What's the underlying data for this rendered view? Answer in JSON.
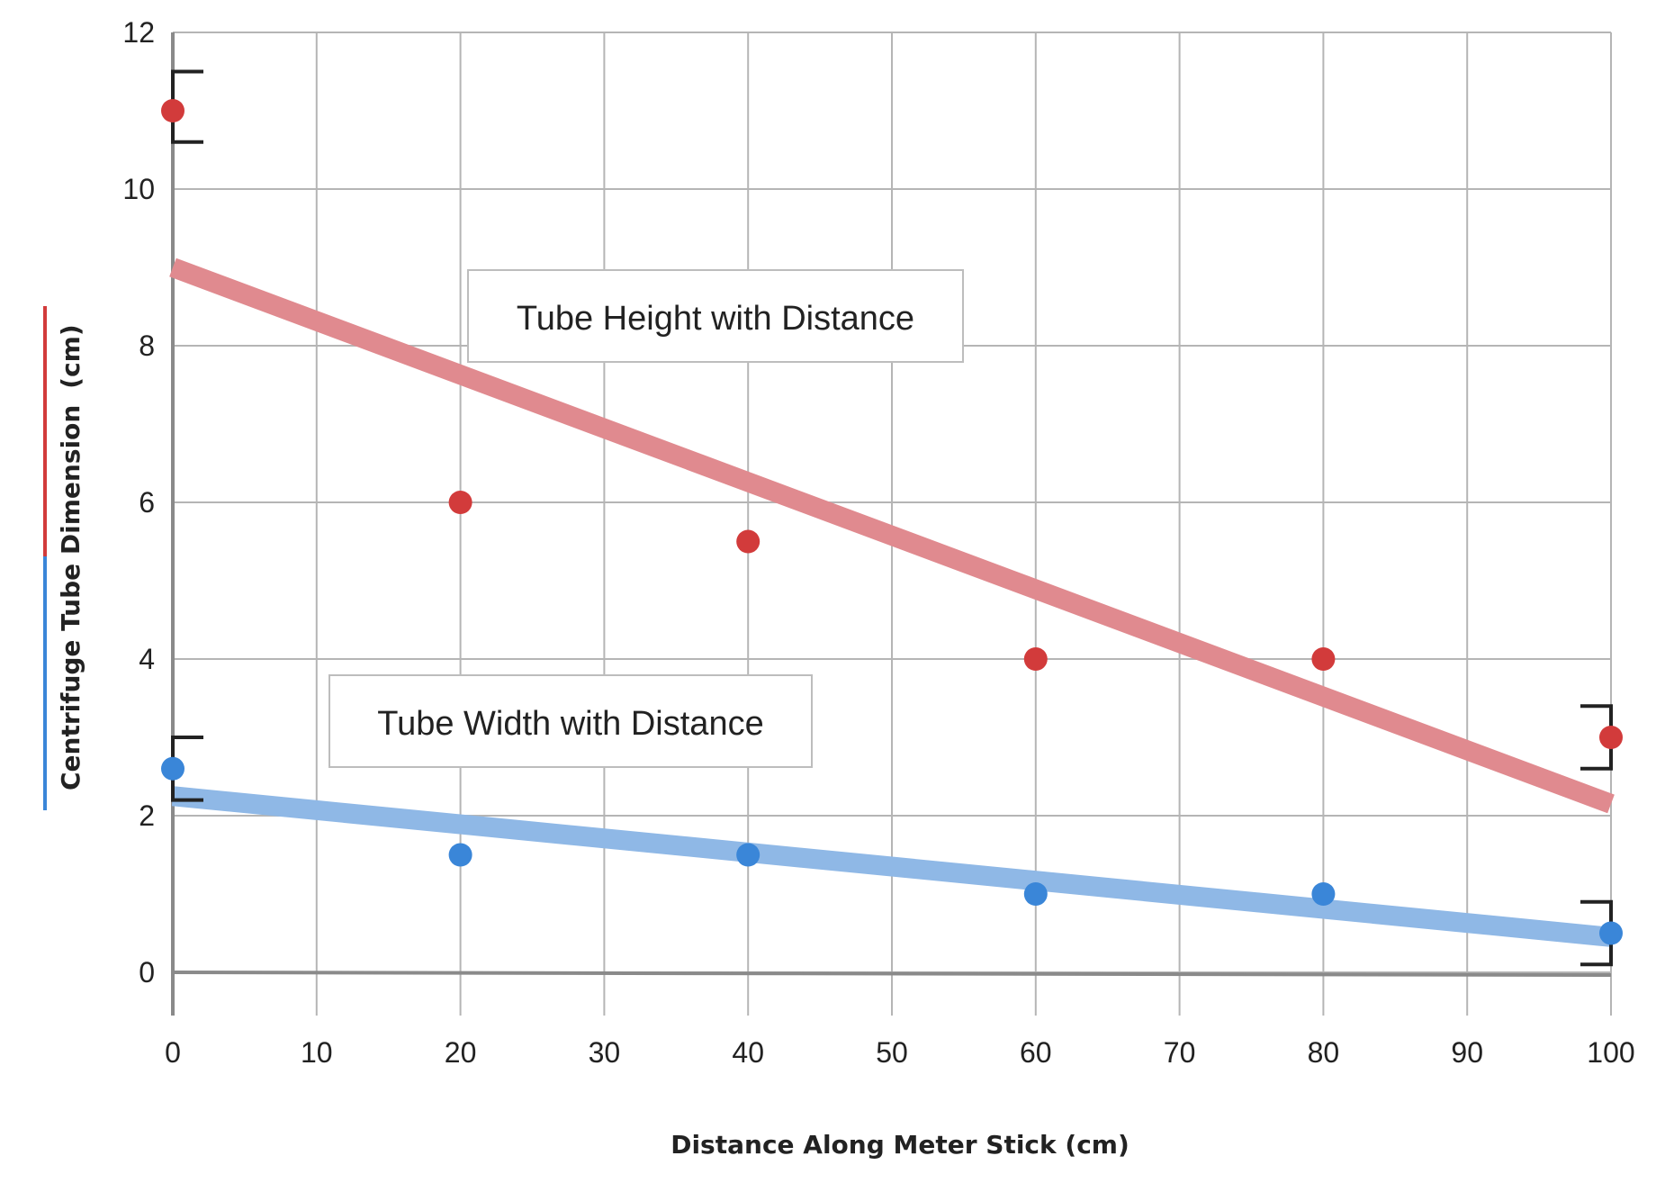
{
  "chart_data": {
    "type": "scatter",
    "xlabel": "Distance Along Meter Stick (cm)",
    "ylabel": "Centrifuge Tube Dimension",
    "ylabel_unit": "(cm)",
    "xlim": [
      0,
      100
    ],
    "ylim": [
      0,
      12
    ],
    "x_ticks": [
      0,
      10,
      20,
      30,
      40,
      50,
      60,
      70,
      80,
      90,
      100
    ],
    "y_ticks": [
      0,
      2,
      4,
      6,
      8,
      10,
      12
    ],
    "grid": true,
    "series": [
      {
        "name": "Tube Height with Distance",
        "color": "#d23b3b",
        "trend_color": "#e08a8f",
        "points": [
          [
            0,
            11
          ],
          [
            20,
            6
          ],
          [
            40,
            5.5
          ],
          [
            60,
            4
          ],
          [
            80,
            4
          ],
          [
            100,
            3
          ]
        ],
        "trend": [
          [
            0,
            9
          ],
          [
            100,
            2.15
          ]
        ],
        "error_bars": [
          {
            "x": 0,
            "low": 10.6,
            "high": 11.5
          },
          {
            "x": 100,
            "low": 2.6,
            "high": 3.4
          }
        ]
      },
      {
        "name": "Tube Width with Distance",
        "color": "#3a86d8",
        "trend_color": "#8fb8e6",
        "points": [
          [
            0,
            2.6
          ],
          [
            20,
            1.5
          ],
          [
            40,
            1.5
          ],
          [
            60,
            1
          ],
          [
            80,
            1
          ],
          [
            100,
            0.5
          ]
        ],
        "trend": [
          [
            0,
            2.25
          ],
          [
            100,
            0.45
          ]
        ],
        "error_bars": [
          {
            "x": 0,
            "low": 2.2,
            "high": 3.0
          },
          {
            "x": 100,
            "low": 0.1,
            "high": 0.9
          }
        ]
      }
    ]
  }
}
